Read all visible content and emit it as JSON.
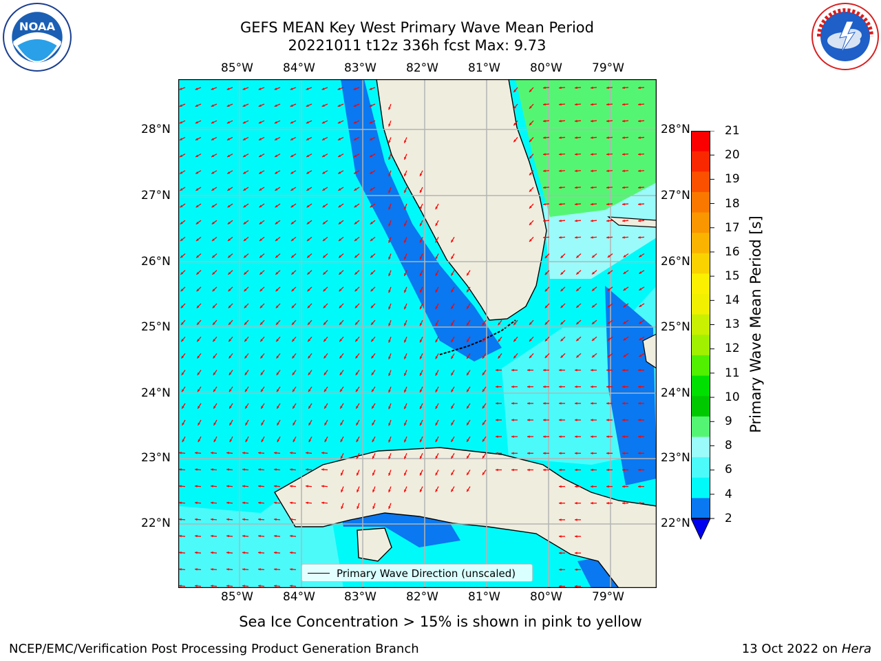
{
  "title": {
    "line1": "GEFS MEAN Key West Primary Wave Mean Period",
    "line2": "20221011 t12z 336h fcst   Max: 9.73"
  },
  "logos": {
    "noaa_text": "NOAA",
    "noaa_ring_text": "NATIONAL OCEANIC AND ATMOSPHERIC ADMINISTRATION · U.S. DEPARTMENT OF COMMERCE",
    "nws_ring_text": "NATIONAL WEATHER SERVICE"
  },
  "map": {
    "lon_labels": [
      "85°W",
      "84°W",
      "83°W",
      "82°W",
      "81°W",
      "80°W",
      "79°W"
    ],
    "lat_labels_left": [
      "28°N",
      "27°N",
      "26°N",
      "25°N",
      "24°N",
      "23°N",
      "22°N"
    ],
    "lat_labels_right": [
      "28°N",
      "27°N",
      "26°N",
      "25°N",
      "24°N",
      "23°N",
      "22°N"
    ],
    "legend_text": "Primary Wave Direction (unscaled)",
    "colors": {
      "land": "#efedde",
      "period_2_4": "#0a78f0",
      "period_4_6": "#00fafa",
      "period_6_8": "#4cfafa",
      "period_8_9": "#9bfafa",
      "period_9_10": "#55f574",
      "arrow": "#ff0000",
      "grid": "#b4b4b4"
    }
  },
  "colorbar": {
    "title": "Primary Wave Mean Period [s]",
    "ticks": [
      "21",
      "20",
      "19",
      "18",
      "17",
      "16",
      "15",
      "14",
      "13",
      "12",
      "11",
      "10",
      "9",
      "8",
      "6",
      "4",
      "2"
    ],
    "colors_top_to_bottom": [
      "#fa0000",
      "#fa2800",
      "#fa5000",
      "#fa7800",
      "#fa9600",
      "#fab400",
      "#fad200",
      "#faf000",
      "#f0f000",
      "#c8f000",
      "#a0f000",
      "#50f000",
      "#00e000",
      "#00c800",
      "#55f574",
      "#9bfafa",
      "#4cfafa",
      "#00fafa",
      "#0a78f0"
    ],
    "extend_color": "#0000f0"
  },
  "note": "Sea Ice Concentration > 15% is shown in pink to yellow",
  "footer": {
    "left": "NCEP/EMC/Verification Post Processing Product Generation Branch",
    "date": "13 Oct 2022 on ",
    "machine": "Hera"
  }
}
